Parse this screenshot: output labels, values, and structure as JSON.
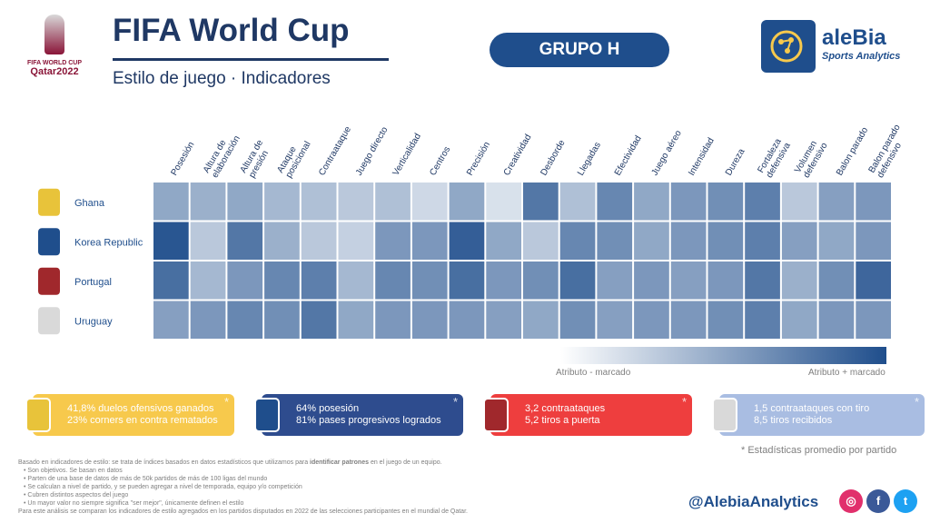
{
  "header": {
    "title": "FIFA World Cup",
    "subtitle": "Estilo de juego · Indicadores",
    "group": "GRUPO H",
    "wc_logo_line1": "FIFA WORLD CUP",
    "wc_logo_line2": "Qatar2022"
  },
  "brand": {
    "name": "aleBia",
    "tagline": "Sports Analytics"
  },
  "chart_data": {
    "type": "heatmap",
    "title": "Estilo de juego · Indicadores",
    "columns": [
      "Posesión",
      "Altura de elaboración",
      "Altura de presión",
      "Ataque posicional",
      "Contraataque",
      "Juego directo",
      "Verticalidad",
      "Centros",
      "Precisión",
      "Creatividad",
      "Desborde",
      "Llegadas",
      "Efectividad",
      "Juego aéreo",
      "Intensidad",
      "Dureza",
      "Fortaleza defensiva",
      "Volumen defensivo",
      "Balon parado",
      "Balon parado defensivo"
    ],
    "rows": [
      "Ghana",
      "Korea Republic",
      "Portugal",
      "Uruguay"
    ],
    "values": [
      [
        0.45,
        0.4,
        0.45,
        0.35,
        0.3,
        0.25,
        0.3,
        0.15,
        0.45,
        0.1,
        0.75,
        0.3,
        0.65,
        0.45,
        0.55,
        0.6,
        0.7,
        0.25,
        0.5,
        0.55
      ],
      [
        0.95,
        0.25,
        0.75,
        0.4,
        0.25,
        0.2,
        0.55,
        0.55,
        0.9,
        0.45,
        0.25,
        0.65,
        0.6,
        0.45,
        0.55,
        0.6,
        0.7,
        0.5,
        0.45,
        0.55
      ],
      [
        0.8,
        0.35,
        0.55,
        0.65,
        0.7,
        0.35,
        0.65,
        0.6,
        0.8,
        0.55,
        0.6,
        0.8,
        0.5,
        0.55,
        0.5,
        0.55,
        0.75,
        0.4,
        0.6,
        0.85
      ],
      [
        0.5,
        0.55,
        0.65,
        0.6,
        0.75,
        0.45,
        0.55,
        0.55,
        0.55,
        0.5,
        0.45,
        0.6,
        0.5,
        0.55,
        0.55,
        0.6,
        0.7,
        0.45,
        0.55,
        0.55
      ]
    ],
    "scale": [
      0,
      1
    ],
    "legend_low": "Atributo - marcado",
    "legend_high": "Atributo + marcado",
    "color_low": "#ffffff",
    "color_high": "#1f4e8c"
  },
  "team_colors": [
    "#e8c33a",
    "#1f4e8c",
    "#a0282c",
    "#d9d9d9"
  ],
  "stat_boxes": [
    {
      "team": "Ghana",
      "line1": "41,8% duelos ofensivos ganados",
      "line2": "23% corners en contra rematados",
      "color": "#f7c94c",
      "star": "*"
    },
    {
      "team": "Korea Republic",
      "line1": "64% posesión",
      "line2": "81% pases progresivos logrados",
      "color": "#2e4c8e",
      "star": "*"
    },
    {
      "team": "Portugal",
      "line1": "3,2 contraataques",
      "line2": "5,2 tiros a puerta",
      "color": "#ee3e3e",
      "star": "*"
    },
    {
      "team": "Uruguay",
      "line1": "1,5 contraataques con tiro",
      "line2": "8,5 tiros recibidos",
      "color": "#a9bde2",
      "star": "*"
    }
  ],
  "footnote": "* Estadísticas promedio por partido",
  "notes": {
    "intro_pre": "Basado en indicadores de estilo: se trata de índices basados en datos estadísticos que utilizamos para ",
    "intro_bold": "identificar patrones",
    "intro_post": " en el juego de un equipo.",
    "bullets": [
      "Son objetivos. Se basan en datos",
      "Parten de una base de datos de más de 50k partidos de más de 100 ligas del mundo",
      "Se calculan a nivel de partido, y se pueden agregar a nivel de temporada, equipo y/o competición",
      "Cubren distintos aspectos del juego",
      "Un mayor valor no siempre significa \"ser mejor\", únicamente definen el estilo"
    ],
    "closing": "Para este análisis se comparan los indicadores de estilo agregados en los partidos disputados en 2022 de las selecciones participantes en el mundial de Qatar."
  },
  "social": {
    "handle": "@AlebiaAnalytics",
    "instagram": "◎",
    "facebook": "f",
    "twitter": "t",
    "instagram_color": "#e1306c",
    "facebook_color": "#3b5998",
    "twitter_color": "#1da1f2"
  }
}
